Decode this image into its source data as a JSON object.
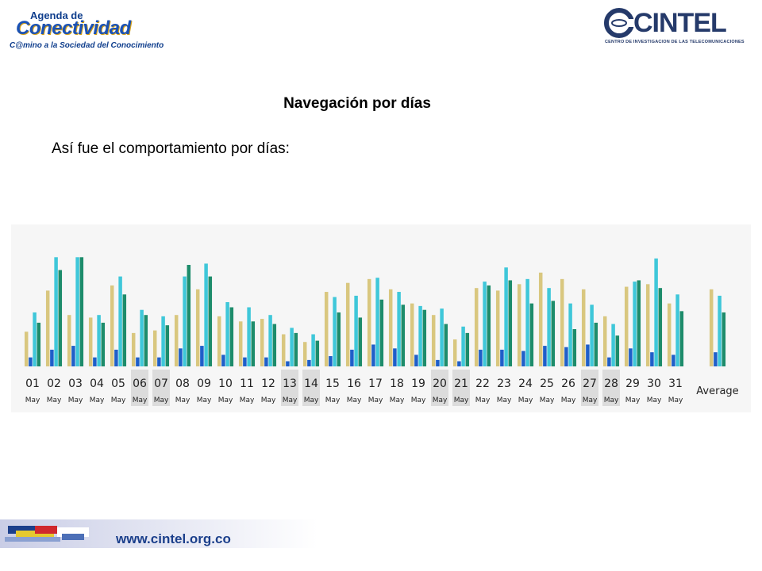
{
  "header": {
    "left_logo_top": "Agenda de",
    "left_logo_main": "Conectividad",
    "left_logo_sub": "C@mino a la Sociedad del Conocimiento",
    "right_logo_word": "CINTEL",
    "right_logo_sub": "CENTRO DE INVESTIGACION DE LAS TELECOMUNICACIONES"
  },
  "title": "Navegación por días",
  "subtitle": "Así fue el comportamiento por días:",
  "footer": {
    "url": "www.cintel.org.co"
  },
  "colors": {
    "series1": "#d9c77f",
    "series2": "#1f5fc9",
    "series3": "#3fc7d9",
    "series4": "#1d8c6b",
    "weekend_bg": "#dcdcdc"
  },
  "chart_data": {
    "type": "bar",
    "categories": [
      "01",
      "02",
      "03",
      "04",
      "05",
      "06",
      "07",
      "08",
      "09",
      "10",
      "11",
      "12",
      "13",
      "14",
      "15",
      "16",
      "17",
      "18",
      "19",
      "20",
      "21",
      "22",
      "23",
      "24",
      "25",
      "26",
      "27",
      "28",
      "29",
      "30",
      "31",
      "Average"
    ],
    "sublabels": [
      "May",
      "May",
      "May",
      "May",
      "May",
      "May",
      "May",
      "May",
      "May",
      "May",
      "May",
      "May",
      "May",
      "May",
      "May",
      "May",
      "May",
      "May",
      "May",
      "May",
      "May",
      "May",
      "May",
      "May",
      "May",
      "May",
      "May",
      "May",
      "May",
      "May",
      "May",
      ""
    ],
    "weekend": [
      "06",
      "07",
      "13",
      "14",
      "20",
      "21",
      "27",
      "28"
    ],
    "ylim": [
      0,
      100
    ],
    "series": [
      {
        "values": [
          27,
          59,
          40,
          38,
          63,
          26,
          28,
          40,
          60,
          39,
          35,
          37,
          25,
          19,
          58,
          65,
          68,
          60,
          49,
          40,
          21,
          61,
          59,
          64,
          73,
          68,
          60,
          39,
          62,
          64,
          49,
          60
        ]
      },
      {
        "values": [
          7,
          13,
          16,
          7,
          13,
          7,
          7,
          14,
          16,
          9,
          7,
          7,
          4,
          5,
          8,
          13,
          17,
          14,
          9,
          5,
          4,
          13,
          13,
          12,
          16,
          15,
          17,
          7,
          14,
          11,
          9,
          11
        ]
      },
      {
        "values": [
          42,
          85,
          85,
          40,
          70,
          44,
          39,
          70,
          80,
          50,
          46,
          40,
          30,
          25,
          54,
          55,
          69,
          58,
          47,
          45,
          31,
          66,
          77,
          68,
          61,
          49,
          48,
          33,
          66,
          84,
          56,
          55
        ]
      },
      {
        "values": [
          34,
          75,
          85,
          34,
          56,
          40,
          32,
          79,
          70,
          46,
          35,
          33,
          26,
          20,
          42,
          38,
          52,
          48,
          44,
          33,
          26,
          63,
          67,
          49,
          51,
          29,
          34,
          24,
          67,
          61,
          43,
          42
        ]
      }
    ]
  }
}
